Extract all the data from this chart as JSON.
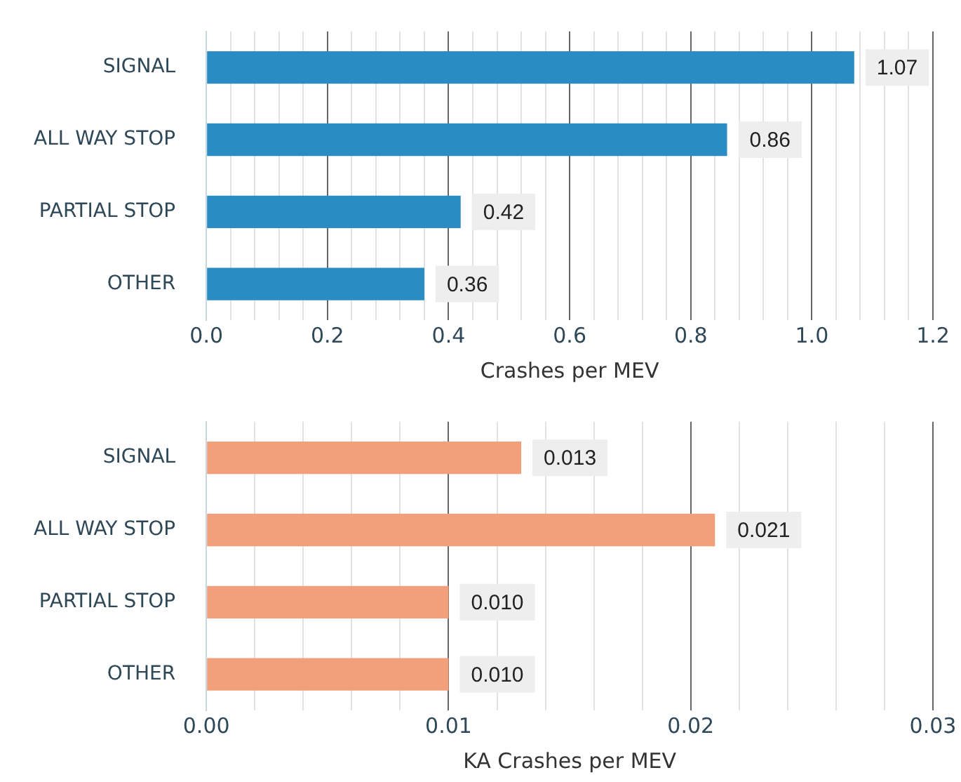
{
  "chart_data": [
    {
      "type": "bar",
      "orientation": "horizontal",
      "xlabel": "Crashes per MEV",
      "categories": [
        "SIGNAL",
        "ALL WAY STOP",
        "PARTIAL STOP",
        "OTHER"
      ],
      "series": [
        {
          "color": "#2b8cc4",
          "values": [
            1.07,
            0.86,
            0.42,
            0.36
          ]
        }
      ],
      "value_labels": [
        "1.07",
        "0.86",
        "0.42",
        "0.36"
      ],
      "xlim": [
        0,
        1.2
      ],
      "xticks": [
        {
          "value": 0,
          "label": "0.0"
        },
        {
          "value": 0.04,
          "label": null
        },
        {
          "value": 0.08,
          "label": null
        },
        {
          "value": 0.12,
          "label": null
        },
        {
          "value": 0.16,
          "label": null
        },
        {
          "value": 0.2,
          "label": "0.2"
        },
        {
          "value": 0.24,
          "label": null
        },
        {
          "value": 0.28,
          "label": null
        },
        {
          "value": 0.32,
          "label": null
        },
        {
          "value": 0.36,
          "label": null
        },
        {
          "value": 0.4,
          "label": "0.4"
        },
        {
          "value": 0.44,
          "label": null
        },
        {
          "value": 0.48,
          "label": null
        },
        {
          "value": 0.52,
          "label": null
        },
        {
          "value": 0.56,
          "label": null
        },
        {
          "value": 0.6,
          "label": "0.6"
        },
        {
          "value": 0.64,
          "label": null
        },
        {
          "value": 0.68,
          "label": null
        },
        {
          "value": 0.72,
          "label": null
        },
        {
          "value": 0.76,
          "label": null
        },
        {
          "value": 0.8,
          "label": "0.8"
        },
        {
          "value": 0.84,
          "label": null
        },
        {
          "value": 0.88,
          "label": null
        },
        {
          "value": 0.92,
          "label": null
        },
        {
          "value": 0.96,
          "label": null
        },
        {
          "value": 1,
          "label": "1.0"
        },
        {
          "value": 1.04,
          "label": null
        },
        {
          "value": 1.08,
          "label": null
        },
        {
          "value": 1.12,
          "label": null
        },
        {
          "value": 1.16,
          "label": null
        },
        {
          "value": 1.2,
          "label": "1.2"
        }
      ],
      "grid": "x",
      "legend": false
    },
    {
      "type": "bar",
      "orientation": "horizontal",
      "xlabel": "KA Crashes per MEV",
      "categories": [
        "SIGNAL",
        "ALL WAY STOP",
        "PARTIAL STOP",
        "OTHER"
      ],
      "series": [
        {
          "color": "#f2a07c",
          "values": [
            0.013,
            0.021,
            0.01,
            0.01
          ]
        }
      ],
      "value_labels": [
        "0.013",
        "0.021",
        "0.010",
        "0.010"
      ],
      "xlim": [
        0,
        0.03
      ],
      "xticks": [
        {
          "value": 0,
          "label": "0.00"
        },
        {
          "value": 0.002,
          "label": null
        },
        {
          "value": 0.004,
          "label": null
        },
        {
          "value": 0.006,
          "label": null
        },
        {
          "value": 0.008,
          "label": null
        },
        {
          "value": 0.01,
          "label": "0.01"
        },
        {
          "value": 0.012,
          "label": null
        },
        {
          "value": 0.014,
          "label": null
        },
        {
          "value": 0.016,
          "label": null
        },
        {
          "value": 0.018,
          "label": null
        },
        {
          "value": 0.02,
          "label": "0.02"
        },
        {
          "value": 0.022,
          "label": null
        },
        {
          "value": 0.024,
          "label": null
        },
        {
          "value": 0.026,
          "label": null
        },
        {
          "value": 0.028,
          "label": null
        },
        {
          "value": 0.03,
          "label": "0.03"
        }
      ],
      "grid": "x",
      "legend": false
    }
  ]
}
